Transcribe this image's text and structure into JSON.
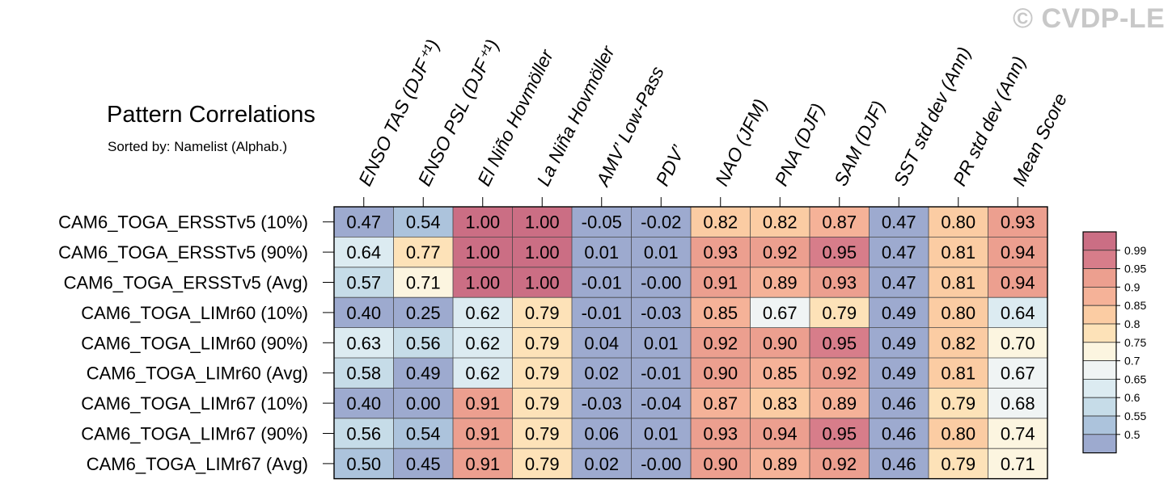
{
  "watermark": "© CVDP-LE",
  "header": {
    "title": "Pattern Correlations",
    "subtitle": "Sorted by: Namelist (Alphab.)"
  },
  "chart_data": {
    "type": "heatmap",
    "columns": [
      "ENSO TAS (DJF⁺¹)",
      "ENSO PSL (DJF⁺¹)",
      "El Niño Hovmöller",
      "La Niña Hovmöller",
      "AMV’ Low-Pass",
      "PDV’",
      "NAO (JFM)",
      "PNA (DJF)",
      "SAM (DJF)",
      "SST std dev (Ann)",
      "PR std dev (Ann)",
      "Mean Score"
    ],
    "rows": [
      "CAM6_TOGA_ERSSTv5 (10%)",
      "CAM6_TOGA_ERSSTv5 (90%)",
      "CAM6_TOGA_ERSSTv5 (Avg)",
      "CAM6_TOGA_LIMr60 (10%)",
      "CAM6_TOGA_LIMr60 (90%)",
      "CAM6_TOGA_LIMr60 (Avg)",
      "CAM6_TOGA_LIMr67 (10%)",
      "CAM6_TOGA_LIMr67 (90%)",
      "CAM6_TOGA_LIMr67 (Avg)"
    ],
    "values": [
      [
        "0.47",
        "0.54",
        "1.00",
        "1.00",
        "-0.05",
        "-0.02",
        "0.82",
        "0.82",
        "0.87",
        "0.47",
        "0.80",
        "0.93"
      ],
      [
        "0.64",
        "0.77",
        "1.00",
        "1.00",
        "0.01",
        "0.01",
        "0.93",
        "0.92",
        "0.95",
        "0.47",
        "0.81",
        "0.94"
      ],
      [
        "0.57",
        "0.71",
        "1.00",
        "1.00",
        "-0.01",
        "-0.00",
        "0.91",
        "0.89",
        "0.93",
        "0.47",
        "0.81",
        "0.94"
      ],
      [
        "0.40",
        "0.25",
        "0.62",
        "0.79",
        "-0.01",
        "-0.03",
        "0.85",
        "0.67",
        "0.79",
        "0.49",
        "0.80",
        "0.64"
      ],
      [
        "0.63",
        "0.56",
        "0.62",
        "0.79",
        "0.04",
        "0.01",
        "0.92",
        "0.90",
        "0.95",
        "0.49",
        "0.82",
        "0.70"
      ],
      [
        "0.58",
        "0.49",
        "0.62",
        "0.79",
        "0.02",
        "-0.01",
        "0.90",
        "0.85",
        "0.92",
        "0.49",
        "0.81",
        "0.67"
      ],
      [
        "0.40",
        "0.00",
        "0.91",
        "0.79",
        "-0.03",
        "-0.04",
        "0.87",
        "0.83",
        "0.89",
        "0.46",
        "0.79",
        "0.68"
      ],
      [
        "0.56",
        "0.54",
        "0.91",
        "0.79",
        "0.06",
        "0.01",
        "0.93",
        "0.94",
        "0.95",
        "0.46",
        "0.80",
        "0.74"
      ],
      [
        "0.50",
        "0.45",
        "0.91",
        "0.79",
        "0.02",
        "-0.00",
        "0.90",
        "0.89",
        "0.92",
        "0.46",
        "0.79",
        "0.71"
      ]
    ],
    "colorbar": {
      "labels": [
        "0.99",
        "0.95",
        "0.9",
        "0.85",
        "0.8",
        "0.75",
        "0.7",
        "0.65",
        "0.6",
        "0.55",
        "0.5"
      ],
      "thresholds": [
        0.5,
        0.55,
        0.6,
        0.65,
        0.7,
        0.75,
        0.8,
        0.85,
        0.9,
        0.95,
        0.99
      ],
      "colors": [
        "#9daacf",
        "#acc3dc",
        "#c6dce8",
        "#dcebf1",
        "#f0f4f4",
        "#fcf5e0",
        "#fde2b8",
        "#fbcca3",
        "#f5b298",
        "#ec9f8f",
        "#d77d8a",
        "#cb6e84"
      ]
    }
  }
}
